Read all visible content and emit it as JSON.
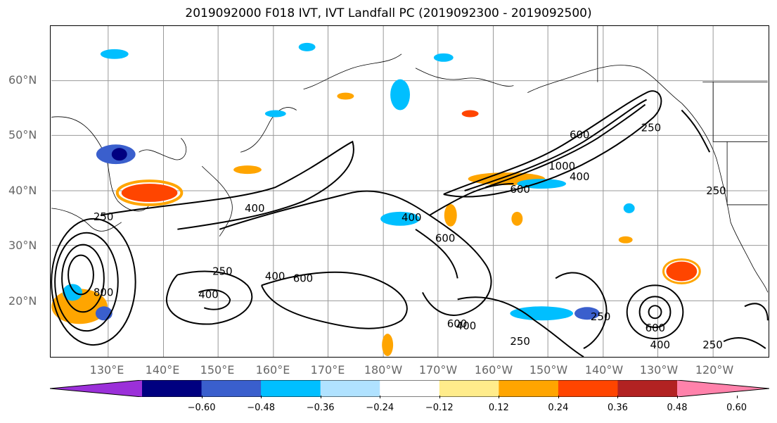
{
  "title": "2019092000 F018 IVT, IVT Landfall PC (2019092300 - 2019092500)",
  "lat_labels": [
    "60°N",
    "50°N",
    "40°N",
    "30°N",
    "20°N"
  ],
  "lon_labels": [
    "130°E",
    "140°E",
    "150°E",
    "160°E",
    "170°E",
    "180°W",
    "170°W",
    "160°W",
    "150°W",
    "140°W",
    "130°W",
    "120°W"
  ],
  "contour_labels": [
    "250",
    "400",
    "600",
    "1000",
    "600",
    "400",
    "250",
    "400",
    "600",
    "250",
    "400",
    "600",
    "400",
    "600",
    "250",
    "400",
    "250",
    "600",
    "400",
    "250",
    "800",
    "250"
  ],
  "colorbar": {
    "colors": [
      "#9b30d9",
      "#000080",
      "#3a5fcd",
      "#00bfff",
      "#b0e2ff",
      "#ffffff",
      "#ffec8b",
      "#ffa500",
      "#ff4500",
      "#b22222",
      "#ff82ab"
    ],
    "tick_labels": [
      "−0.60",
      "−0.48",
      "−0.36",
      "−0.24",
      "−0.12",
      "0.12",
      "0.24",
      "0.36",
      "0.48",
      "0.60"
    ],
    "boundaries": [
      -0.6,
      -0.48,
      -0.36,
      -0.24,
      -0.12,
      0.12,
      0.24,
      0.36,
      0.48,
      0.6
    ]
  }
}
